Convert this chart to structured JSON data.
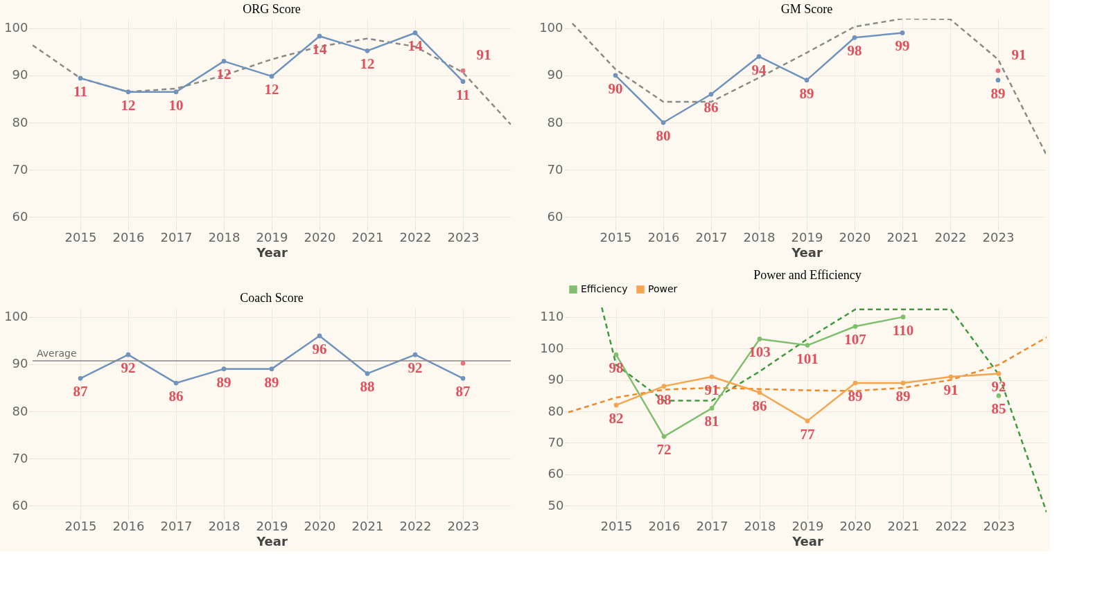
{
  "chart_data": [
    {
      "type": "line",
      "title": "ORG Score",
      "xlabel": "Year",
      "x": [
        2015,
        2016,
        2017,
        2018,
        2019,
        2020,
        2021,
        2022,
        2023
      ],
      "xlim": [
        2014,
        2024
      ],
      "xticks": [
        2015,
        2016,
        2017,
        2018,
        2019,
        2020,
        2021,
        2022,
        2023
      ],
      "ylim": [
        58,
        102
      ],
      "yticks": [
        60,
        70,
        80,
        90,
        100
      ],
      "grid": true,
      "marker": "circle",
      "legend": false,
      "annotations": [
        {
          "text": "11",
          "x": 2015,
          "y": 89.4
        },
        {
          "text": "12",
          "x": 2016,
          "y": 86.5
        },
        {
          "text": "10",
          "x": 2017,
          "y": 86.5
        },
        {
          "text": "12",
          "x": 2018,
          "y": 93
        },
        {
          "text": "12",
          "x": 2019,
          "y": 89.8
        },
        {
          "text": "14",
          "x": 2020,
          "y": 98.3
        },
        {
          "text": "12",
          "x": 2021,
          "y": 95.2
        },
        {
          "text": "14",
          "x": 2022,
          "y": 99
        },
        {
          "text": "11",
          "x": 2023,
          "y": 88.7
        }
      ],
      "series": [
        {
          "type": "line",
          "line_style": "dashed",
          "marker": "none",
          "color": "#8a8a8a",
          "x": [
            2014,
            2015,
            2016,
            2017,
            2018,
            2019,
            2020,
            2021,
            2022,
            2023,
            2024
          ],
          "values": [
            96.4,
            89.4,
            86.5,
            87.2,
            90,
            93.4,
            96.1,
            97.8,
            96.1,
            90.6,
            79.6
          ]
        },
        {
          "color": "#6f93bd",
          "values": [
            89.4,
            86.5,
            86.5,
            93,
            89.8,
            98.3,
            95.2,
            99,
            88.7
          ]
        },
        {
          "type": "scatter",
          "color": "#e8737b",
          "x": [
            2023
          ],
          "values": [
            91
          ],
          "value_labels": [
            "91"
          ]
        }
      ]
    },
    {
      "type": "line",
      "title": "GM Score",
      "xlabel": "Year",
      "x": [
        2015,
        2016,
        2017,
        2018,
        2019,
        2020,
        2021,
        2022,
        2023
      ],
      "xlim": [
        2014,
        2024
      ],
      "xticks": [
        2015,
        2016,
        2017,
        2018,
        2019,
        2020,
        2021,
        2022,
        2023
      ],
      "ylim": [
        58,
        102
      ],
      "yticks": [
        60,
        70,
        80,
        90,
        100
      ],
      "grid": true,
      "marker": "circle",
      "legend": false,
      "series": [
        {
          "type": "line",
          "line_style": "dashed",
          "marker": "none",
          "color": "#8a8a8a",
          "x": [
            2014.1,
            2015,
            2016,
            2017,
            2018,
            2019,
            2020,
            2021,
            2022,
            2023,
            2024
          ],
          "values": [
            101,
            91.3,
            84.4,
            84.4,
            89.5,
            94.8,
            100.3,
            102,
            101.9,
            93.4,
            73.4
          ]
        },
        {
          "color": "#6f93bd",
          "values": [
            90,
            80,
            86,
            94,
            89,
            98,
            99,
            null,
            89
          ],
          "value_labels": [
            "90",
            "80",
            "86",
            "94",
            "89",
            "98",
            "99",
            null,
            "89"
          ]
        },
        {
          "type": "scatter",
          "color": "#e8737b",
          "x": [
            2023
          ],
          "values": [
            91
          ],
          "value_labels": [
            "91"
          ]
        }
      ]
    },
    {
      "type": "line",
      "title": "Coach Score",
      "xlabel": "Year",
      "x": [
        2015,
        2016,
        2017,
        2018,
        2019,
        2020,
        2021,
        2022,
        2023
      ],
      "xlim": [
        2014,
        2024
      ],
      "xticks": [
        2015,
        2016,
        2017,
        2018,
        2019,
        2020,
        2021,
        2022,
        2023
      ],
      "ylim": [
        58,
        102
      ],
      "yticks": [
        60,
        70,
        80,
        90,
        100
      ],
      "grid": true,
      "marker": "circle",
      "legend": false,
      "ref_lines": [
        {
          "axis": "y",
          "value": 90.7,
          "label": "Average",
          "color": "#888888"
        }
      ],
      "series": [
        {
          "color": "#6f93bd",
          "values": [
            87,
            92,
            86,
            89,
            89,
            96,
            88,
            92,
            87
          ],
          "value_labels": [
            "87",
            "92",
            "86",
            "89",
            "89",
            "96",
            "88",
            "92",
            "87"
          ]
        },
        {
          "type": "scatter",
          "color": "#e8737b",
          "x": [
            2023
          ],
          "values": [
            90.2
          ]
        }
      ]
    },
    {
      "type": "line",
      "title": "Power and Efficiency",
      "xlabel": "Year",
      "x": [
        2015,
        2016,
        2017,
        2018,
        2019,
        2020,
        2021,
        2022,
        2023
      ],
      "xlim": [
        2014,
        2024
      ],
      "xticks": [
        2015,
        2016,
        2017,
        2018,
        2019,
        2020,
        2021,
        2022,
        2023
      ],
      "ylim": [
        47,
        113
      ],
      "yticks": [
        50,
        60,
        70,
        80,
        90,
        100,
        110
      ],
      "grid": true,
      "marker": "circle",
      "legend": "top",
      "series": [
        {
          "type": "line",
          "line_style": "dashed",
          "marker": "none",
          "color": "#3f9a3f",
          "x": [
            2014.7,
            2015,
            2016,
            2017,
            2018,
            2019,
            2020,
            2022,
            2023,
            2024
          ],
          "values": [
            113,
            94.8,
            83.4,
            83.4,
            92.7,
            103,
            112.4,
            112.4,
            91.7,
            48
          ]
        },
        {
          "type": "line",
          "line_style": "dashed",
          "marker": "none",
          "color": "#f0892a",
          "x": [
            2014,
            2015,
            2016,
            2017,
            2018,
            2019,
            2020,
            2021,
            2022,
            2023,
            2024
          ],
          "values": [
            79.7,
            84.4,
            86.9,
            87.5,
            87.1,
            86.7,
            86.5,
            87.5,
            90,
            94.8,
            103.5
          ]
        },
        {
          "name": "Efficiency",
          "color": "#7fbf6f",
          "values": [
            98,
            72,
            81,
            103,
            101,
            107,
            110,
            null,
            85
          ],
          "value_labels": [
            "98",
            "72",
            "81",
            "103",
            "101",
            "107",
            "110",
            null,
            "85"
          ]
        },
        {
          "name": "Power",
          "color": "#f5a550",
          "values": [
            82,
            88,
            91,
            86,
            77,
            89,
            89,
            91,
            92
          ],
          "value_labels": [
            "82",
            "88",
            "91",
            "86",
            "77",
            "89",
            "89",
            "91",
            "92"
          ]
        }
      ]
    }
  ]
}
